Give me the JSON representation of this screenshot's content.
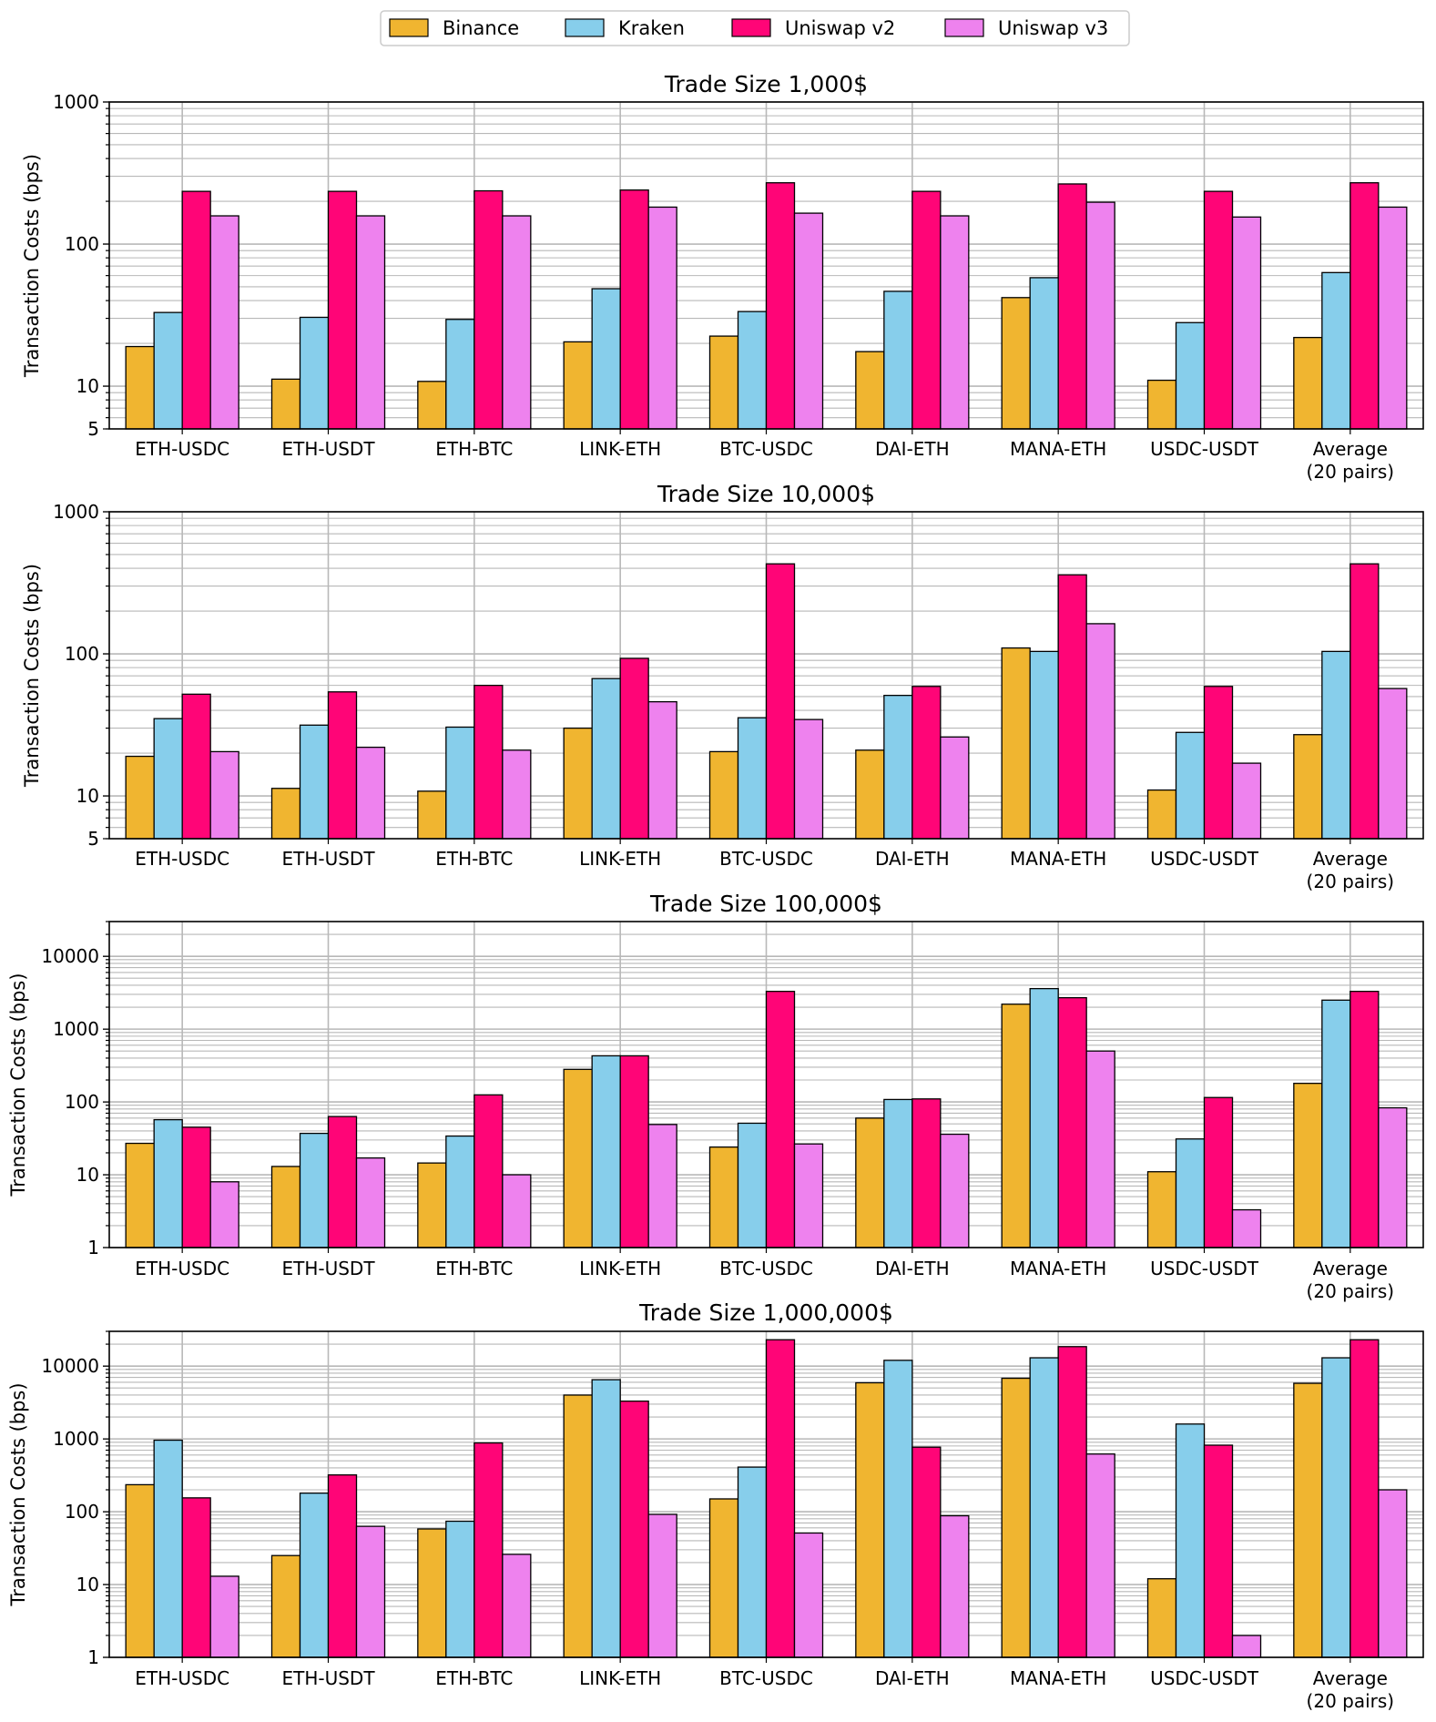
{
  "legend": {
    "placement": "top-center",
    "entries": [
      {
        "name": "Binance",
        "color": "#f0b530"
      },
      {
        "name": "Kraken",
        "color": "#87ceeb"
      },
      {
        "name": "Uniswap v2",
        "color": "#ff0577"
      },
      {
        "name": "Uniswap v3",
        "color": "#ee82ee"
      }
    ]
  },
  "chart_data": [
    {
      "type": "bar",
      "title": "Trade Size 1,000$",
      "ylabel": "Transaction Costs (bps)",
      "yscale": "log",
      "ylim": [
        5,
        1000
      ],
      "yticks": [
        5,
        10,
        100,
        1000
      ],
      "grid": true,
      "categories": [
        "ETH-USDC",
        "ETH-USDT",
        "ETH-BTC",
        "LINK-ETH",
        "BTC-USDC",
        "DAI-ETH",
        "MANA-ETH",
        "USDC-USDT",
        "Average\n(20 pairs)"
      ],
      "series": [
        {
          "name": "Binance",
          "color": "#f0b530",
          "values": [
            19,
            11.2,
            10.8,
            20.5,
            22.5,
            17.5,
            42,
            11,
            22
          ]
        },
        {
          "name": "Kraken",
          "color": "#87ceeb",
          "values": [
            33,
            30.5,
            29.5,
            48.5,
            33.5,
            46.5,
            58,
            28,
            63
          ]
        },
        {
          "name": "Uniswap v2",
          "color": "#ff0577",
          "values": [
            235,
            235,
            237,
            240,
            270,
            235,
            265,
            235,
            270
          ]
        },
        {
          "name": "Uniswap v3",
          "color": "#ee82ee",
          "values": [
            158,
            158,
            158,
            182,
            165,
            158,
            197,
            155,
            182
          ]
        }
      ]
    },
    {
      "type": "bar",
      "title": "Trade Size 10,000$",
      "ylabel": "Transaction Costs (bps)",
      "yscale": "log",
      "ylim": [
        5,
        1000
      ],
      "yticks": [
        5,
        10,
        100,
        1000
      ],
      "grid": true,
      "categories": [
        "ETH-USDC",
        "ETH-USDT",
        "ETH-BTC",
        "LINK-ETH",
        "BTC-USDC",
        "DAI-ETH",
        "MANA-ETH",
        "USDC-USDT",
        "Average\n(20 pairs)"
      ],
      "series": [
        {
          "name": "Binance",
          "color": "#f0b530",
          "values": [
            19,
            11.3,
            10.8,
            30,
            20.5,
            21,
            110,
            11,
            27
          ]
        },
        {
          "name": "Kraken",
          "color": "#87ceeb",
          "values": [
            35,
            31.5,
            30.5,
            67,
            35.5,
            51,
            104,
            28,
            104
          ]
        },
        {
          "name": "Uniswap v2",
          "color": "#ff0577",
          "values": [
            52,
            54,
            60,
            93,
            430,
            59,
            360,
            59,
            430
          ]
        },
        {
          "name": "Uniswap v3",
          "color": "#ee82ee",
          "values": [
            20.5,
            22,
            21,
            46,
            34.5,
            26,
            163,
            17,
            57
          ]
        }
      ]
    },
    {
      "type": "bar",
      "title": "Trade Size 100,000$",
      "ylabel": "Transaction Costs (bps)",
      "yscale": "log",
      "ylim": [
        1,
        30000
      ],
      "yticks": [
        1,
        10,
        100,
        1000,
        10000
      ],
      "grid": true,
      "categories": [
        "ETH-USDC",
        "ETH-USDT",
        "ETH-BTC",
        "LINK-ETH",
        "BTC-USDC",
        "DAI-ETH",
        "MANA-ETH",
        "USDC-USDT",
        "Average\n(20 pairs)"
      ],
      "series": [
        {
          "name": "Binance",
          "color": "#f0b530",
          "values": [
            27,
            13,
            14.5,
            280,
            24,
            60,
            2200,
            11,
            180
          ]
        },
        {
          "name": "Kraken",
          "color": "#87ceeb",
          "values": [
            57,
            37,
            34,
            430,
            51,
            108,
            3600,
            31,
            2500
          ]
        },
        {
          "name": "Uniswap v2",
          "color": "#ff0577",
          "values": [
            45,
            63,
            125,
            430,
            3300,
            110,
            2700,
            115,
            3300
          ]
        },
        {
          "name": "Uniswap v3",
          "color": "#ee82ee",
          "values": [
            8,
            17,
            10,
            49,
            26.5,
            36,
            500,
            3.3,
            83
          ]
        }
      ]
    },
    {
      "type": "bar",
      "title": "Trade Size 1,000,000$",
      "ylabel": "Transaction Costs (bps)",
      "yscale": "log",
      "ylim": [
        1,
        30000
      ],
      "yticks": [
        1,
        10,
        100,
        1000,
        10000
      ],
      "grid": true,
      "categories": [
        "ETH-USDC",
        "ETH-USDT",
        "ETH-BTC",
        "LINK-ETH",
        "BTC-USDC",
        "DAI-ETH",
        "MANA-ETH",
        "USDC-USDT",
        "Average\n(20 pairs)"
      ],
      "series": [
        {
          "name": "Binance",
          "color": "#f0b530",
          "values": [
            235,
            25,
            58,
            4000,
            150,
            5900,
            6800,
            12,
            5800
          ]
        },
        {
          "name": "Kraken",
          "color": "#87ceeb",
          "values": [
            960,
            180,
            74,
            6500,
            410,
            12000,
            13000,
            1600,
            13000
          ]
        },
        {
          "name": "Uniswap v2",
          "color": "#ff0577",
          "values": [
            155,
            320,
            880,
            3300,
            23000,
            770,
            18500,
            820,
            23000
          ]
        },
        {
          "name": "Uniswap v3",
          "color": "#ee82ee",
          "values": [
            13,
            63,
            26,
            92,
            51,
            88,
            620,
            2,
            200
          ]
        }
      ]
    }
  ]
}
